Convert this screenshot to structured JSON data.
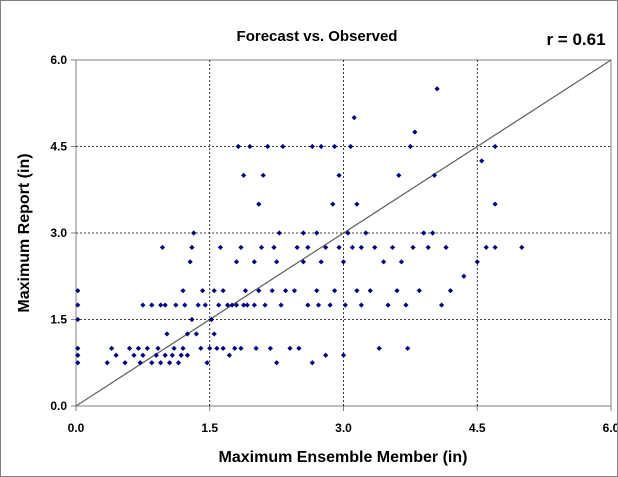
{
  "chart_data": {
    "type": "scatter",
    "title": "Forecast vs. Observed",
    "annotation": "r = 0.61",
    "xlabel": "Maximum Ensemble Member (in)",
    "ylabel": "Maximum Report (in)",
    "xlim": [
      0,
      6
    ],
    "ylim": [
      0,
      6
    ],
    "x_ticks": [
      "0.0",
      "1.5",
      "3.0",
      "4.5",
      "6.0"
    ],
    "y_ticks": [
      "0.0",
      "1.5",
      "3.0",
      "4.5",
      "6.0"
    ],
    "grid": "dashed major gridlines",
    "reference_line": "1:1 diagonal",
    "marker_color": "#00007f",
    "line_color": "#606060",
    "points": [
      [
        0.02,
        0.75
      ],
      [
        0.02,
        0.88
      ],
      [
        0.02,
        1.0
      ],
      [
        0.02,
        1.5
      ],
      [
        0.02,
        1.75
      ],
      [
        0.02,
        2.0
      ],
      [
        0.35,
        0.75
      ],
      [
        0.4,
        1.0
      ],
      [
        0.45,
        0.88
      ],
      [
        0.55,
        0.75
      ],
      [
        0.6,
        1.0
      ],
      [
        0.65,
        0.88
      ],
      [
        0.7,
        1.0
      ],
      [
        0.72,
        0.75
      ],
      [
        0.75,
        0.88
      ],
      [
        0.75,
        1.75
      ],
      [
        0.8,
        1.0
      ],
      [
        0.85,
        0.75
      ],
      [
        0.85,
        1.75
      ],
      [
        0.9,
        0.88
      ],
      [
        0.92,
        1.0
      ],
      [
        0.95,
        0.75
      ],
      [
        0.95,
        1.75
      ],
      [
        0.97,
        2.75
      ],
      [
        1.0,
        0.88
      ],
      [
        1.0,
        1.75
      ],
      [
        1.02,
        1.25
      ],
      [
        1.05,
        0.75
      ],
      [
        1.08,
        0.88
      ],
      [
        1.1,
        1.0
      ],
      [
        1.12,
        1.75
      ],
      [
        1.15,
        0.75
      ],
      [
        1.18,
        0.88
      ],
      [
        1.2,
        1.0
      ],
      [
        1.2,
        2.0
      ],
      [
        1.22,
        1.75
      ],
      [
        1.25,
        0.88
      ],
      [
        1.25,
        1.25
      ],
      [
        1.28,
        2.5
      ],
      [
        1.3,
        1.5
      ],
      [
        1.3,
        2.75
      ],
      [
        1.32,
        3.0
      ],
      [
        1.35,
        1.25
      ],
      [
        1.37,
        1.75
      ],
      [
        1.4,
        1.0
      ],
      [
        1.42,
        2.0
      ],
      [
        1.45,
        1.75
      ],
      [
        1.47,
        0.75
      ],
      [
        1.5,
        1.0
      ],
      [
        1.52,
        1.5
      ],
      [
        1.55,
        1.25
      ],
      [
        1.55,
        2.0
      ],
      [
        1.58,
        1.0
      ],
      [
        1.6,
        1.75
      ],
      [
        1.62,
        2.75
      ],
      [
        1.65,
        1.0
      ],
      [
        1.65,
        2.0
      ],
      [
        1.7,
        1.75
      ],
      [
        1.72,
        0.88
      ],
      [
        1.75,
        1.75
      ],
      [
        1.78,
        1.0
      ],
      [
        1.8,
        1.75
      ],
      [
        1.8,
        2.5
      ],
      [
        1.82,
        4.5
      ],
      [
        1.85,
        1.0
      ],
      [
        1.85,
        2.75
      ],
      [
        1.88,
        1.75
      ],
      [
        1.88,
        4.0
      ],
      [
        1.9,
        2.0
      ],
      [
        1.92,
        1.75
      ],
      [
        1.95,
        4.5
      ],
      [
        2.0,
        1.75
      ],
      [
        2.0,
        2.5
      ],
      [
        2.02,
        1.0
      ],
      [
        2.05,
        2.0
      ],
      [
        2.05,
        3.5
      ],
      [
        2.08,
        2.75
      ],
      [
        2.1,
        4.0
      ],
      [
        2.12,
        1.75
      ],
      [
        2.15,
        4.5
      ],
      [
        2.18,
        1.0
      ],
      [
        2.2,
        2.0
      ],
      [
        2.22,
        2.75
      ],
      [
        2.25,
        0.75
      ],
      [
        2.25,
        2.5
      ],
      [
        2.28,
        3.0
      ],
      [
        2.3,
        1.75
      ],
      [
        2.32,
        4.5
      ],
      [
        2.35,
        2.0
      ],
      [
        2.4,
        1.0
      ],
      [
        2.45,
        2.0
      ],
      [
        2.48,
        2.75
      ],
      [
        2.5,
        1.0
      ],
      [
        2.55,
        2.5
      ],
      [
        2.55,
        3.0
      ],
      [
        2.6,
        1.75
      ],
      [
        2.6,
        2.75
      ],
      [
        2.65,
        0.75
      ],
      [
        2.65,
        4.5
      ],
      [
        2.7,
        2.0
      ],
      [
        2.7,
        3.0
      ],
      [
        2.72,
        1.75
      ],
      [
        2.75,
        2.5
      ],
      [
        2.75,
        4.5
      ],
      [
        2.8,
        0.88
      ],
      [
        2.8,
        2.75
      ],
      [
        2.85,
        1.75
      ],
      [
        2.88,
        3.5
      ],
      [
        2.9,
        2.0
      ],
      [
        2.9,
        4.5
      ],
      [
        2.95,
        2.75
      ],
      [
        2.95,
        4.0
      ],
      [
        3.0,
        0.88
      ],
      [
        3.0,
        2.5
      ],
      [
        3.02,
        1.75
      ],
      [
        3.05,
        3.0
      ],
      [
        3.08,
        4.5
      ],
      [
        3.1,
        2.75
      ],
      [
        3.12,
        5.0
      ],
      [
        3.15,
        2.0
      ],
      [
        3.15,
        3.5
      ],
      [
        3.2,
        1.75
      ],
      [
        3.2,
        2.75
      ],
      [
        3.25,
        3.0
      ],
      [
        3.3,
        2.0
      ],
      [
        3.35,
        2.75
      ],
      [
        3.4,
        1.0
      ],
      [
        3.45,
        2.5
      ],
      [
        3.5,
        1.75
      ],
      [
        3.55,
        2.75
      ],
      [
        3.6,
        2.0
      ],
      [
        3.62,
        4.0
      ],
      [
        3.65,
        2.5
      ],
      [
        3.7,
        1.75
      ],
      [
        3.72,
        1.0
      ],
      [
        3.75,
        4.5
      ],
      [
        3.78,
        2.75
      ],
      [
        3.8,
        4.75
      ],
      [
        3.85,
        2.0
      ],
      [
        3.9,
        3.0
      ],
      [
        3.95,
        2.75
      ],
      [
        4.0,
        3.0
      ],
      [
        4.02,
        4.0
      ],
      [
        4.05,
        5.5
      ],
      [
        4.1,
        1.75
      ],
      [
        4.15,
        2.75
      ],
      [
        4.2,
        2.0
      ],
      [
        4.35,
        2.25
      ],
      [
        4.5,
        2.5
      ],
      [
        4.55,
        4.25
      ],
      [
        4.6,
        2.75
      ],
      [
        4.7,
        3.5
      ],
      [
        4.7,
        4.5
      ],
      [
        4.7,
        2.75
      ],
      [
        5.0,
        2.75
      ]
    ]
  }
}
